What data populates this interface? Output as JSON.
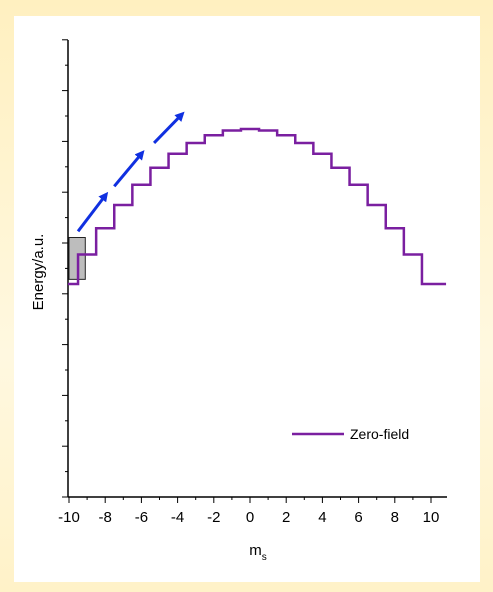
{
  "chart_data": {
    "type": "line",
    "xlabel": "m",
    "xlabel_sub": "s",
    "ylabel": "Energy/a.u.",
    "xlim": [
      -11,
      11
    ],
    "x_ticks": [
      "-10",
      "-8",
      "-6",
      "-4",
      "-2",
      "0",
      "2",
      "4",
      "6",
      "8",
      "10"
    ],
    "y_tick_labels_shown": false,
    "grid": false,
    "legend": {
      "placement": "bottom-right"
    },
    "series": [
      {
        "name": "Zero-field",
        "color": "#7a1fa0",
        "step": true,
        "x": [
          -10,
          -9,
          -8,
          -7,
          -6,
          -5,
          -4,
          -3,
          -2,
          -1,
          0,
          1,
          2,
          3,
          4,
          5,
          6,
          7,
          8,
          9,
          10
        ],
        "y": [
          0,
          19,
          36,
          51,
          64,
          75,
          84,
          91,
          96,
          99,
          100,
          99,
          96,
          91,
          84,
          75,
          64,
          51,
          36,
          19,
          0
        ]
      }
    ],
    "annotations": [
      {
        "type": "arrow",
        "color": "#1030e0",
        "from": [
          -9.5,
          34
        ],
        "to": [
          -8.0,
          57
        ]
      },
      {
        "type": "arrow",
        "color": "#1030e0",
        "from": [
          -7.5,
          63
        ],
        "to": [
          -6.0,
          84
        ]
      },
      {
        "type": "arrow",
        "color": "#1030e0",
        "from": [
          -5.3,
          91
        ],
        "to": [
          -3.8,
          109
        ]
      },
      {
        "type": "box",
        "color": "#bdbdbd",
        "x": [
          -10.0,
          -9.1
        ],
        "y": [
          3,
          30
        ]
      }
    ]
  }
}
